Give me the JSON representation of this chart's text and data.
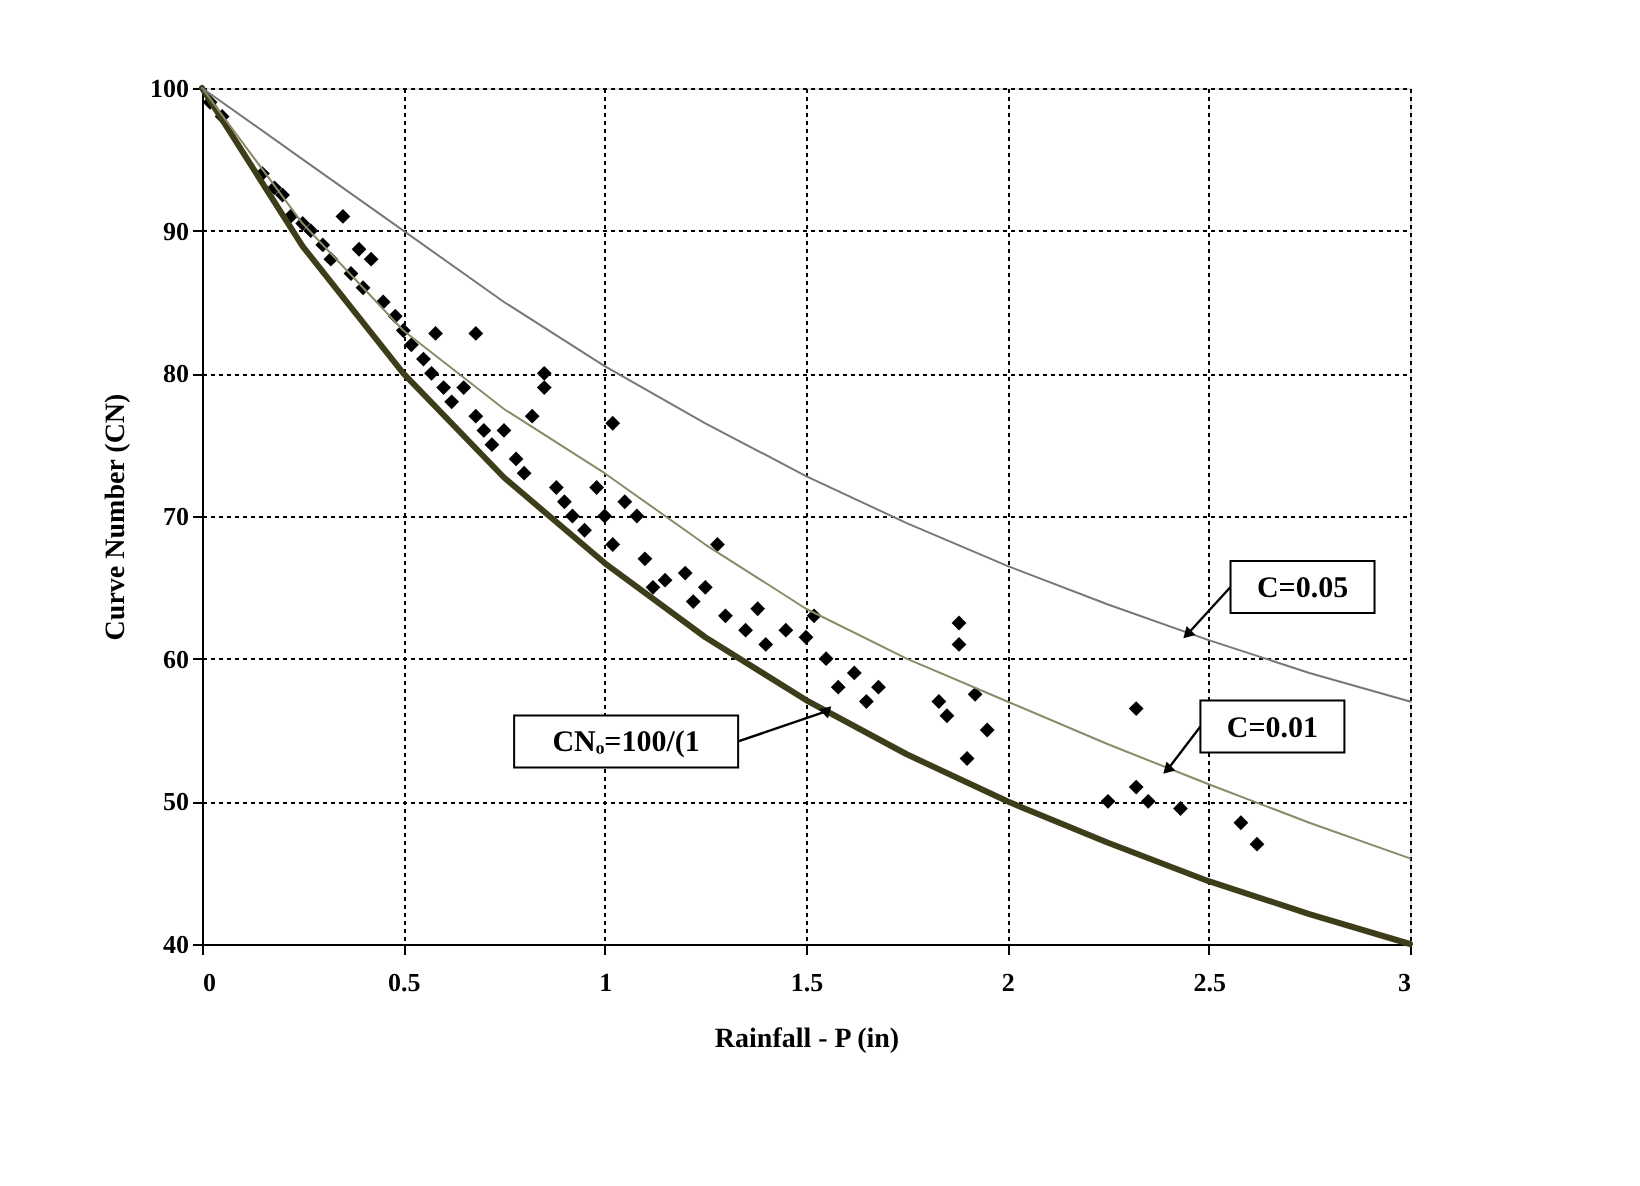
{
  "chart_data": {
    "type": "scatter",
    "xlabel": "Rainfall - P (in)",
    "ylabel": "Curve Number (CN)",
    "xlim": [
      0,
      3
    ],
    "xticks": [
      0,
      0.5,
      1,
      1.5,
      2,
      2.5,
      3
    ],
    "ylim": [
      40,
      100
    ],
    "yticks": [
      40,
      50,
      60,
      70,
      80,
      90,
      100
    ],
    "grid": true,
    "series": [
      {
        "color": "#000000",
        "marker": "diamond",
        "x": [
          0.02,
          0.05,
          0.15,
          0.18,
          0.2,
          0.22,
          0.25,
          0.27,
          0.3,
          0.32,
          0.35,
          0.39,
          0.37,
          0.4,
          0.42,
          0.45,
          0.48,
          0.5,
          0.52,
          0.55,
          0.57,
          0.6,
          0.62,
          0.58,
          0.65,
          0.68,
          0.68,
          0.7,
          0.72,
          0.75,
          0.78,
          0.8,
          0.82,
          0.85,
          0.85,
          0.88,
          0.9,
          0.92,
          0.95,
          0.98,
          1.0,
          1.02,
          1.02,
          1.05,
          1.08,
          1.1,
          1.12,
          1.15,
          1.2,
          1.22,
          1.25,
          1.28,
          1.3,
          1.35,
          1.38,
          1.4,
          1.45,
          1.5,
          1.52,
          1.55,
          1.58,
          1.62,
          1.65,
          1.68,
          1.83,
          1.85,
          1.88,
          1.88,
          1.92,
          1.9,
          1.95,
          2.25,
          2.32,
          2.32,
          2.35,
          2.43,
          2.58,
          2.62
        ],
        "values": [
          99,
          98,
          94,
          93,
          92.5,
          91,
          90.5,
          90,
          89,
          88,
          91,
          88.7,
          87,
          86,
          88,
          85,
          84,
          83,
          82,
          81,
          80,
          79,
          78,
          82.8,
          79,
          82.8,
          77,
          76,
          75,
          76,
          74,
          73,
          77,
          80,
          79,
          72,
          71,
          70,
          69,
          72,
          70,
          68,
          76.5,
          71,
          70,
          67,
          65,
          65.5,
          66,
          64,
          65,
          68,
          63,
          62,
          63.5,
          61,
          62,
          61.5,
          63,
          60,
          58,
          59,
          57,
          58,
          57,
          56,
          62.5,
          61,
          57.5,
          53,
          55,
          50,
          56.5,
          51,
          50,
          49.5,
          48.5,
          47
        ]
      },
      {
        "type": "line",
        "color": "#3d3d1a",
        "marker": "none",
        "x": [
          0,
          0.25,
          0.5,
          0.75,
          1,
          1.25,
          1.5,
          1.75,
          2,
          2.25,
          2.5,
          2.75,
          3
        ],
        "values": [
          100,
          88.9,
          80,
          72.7,
          66.7,
          61.5,
          57.1,
          53.3,
          50,
          47.1,
          44.4,
          42.1,
          40
        ]
      },
      {
        "type": "line",
        "color": "#8a8a6a",
        "marker": "none",
        "x": [
          0,
          0.25,
          0.5,
          0.75,
          1,
          1.25,
          1.5,
          1.75,
          2,
          2.25,
          2.5,
          2.75,
          3
        ],
        "values": [
          100,
          90.5,
          83,
          77.5,
          73,
          68,
          63.5,
          60,
          57,
          54,
          51.2,
          48.5,
          46
        ]
      },
      {
        "type": "line",
        "color": "#777777",
        "marker": "none",
        "x": [
          0,
          0.25,
          0.5,
          0.75,
          1,
          1.25,
          1.5,
          1.75,
          2,
          2.25,
          2.5,
          2.75,
          3
        ],
        "values": [
          100,
          95,
          90,
          85,
          80.5,
          76.5,
          72.8,
          69.5,
          66.5,
          63.8,
          61.3,
          59,
          57
        ]
      }
    ],
    "annotations": [
      {
        "text": "C=0.05",
        "x": 2.45,
        "y": 61.8
      },
      {
        "text": "C=0.01",
        "x": 2.4,
        "y": 52.3
      },
      {
        "text": "CNₒ=100/(1",
        "x": 1.55,
        "y": 56.3
      }
    ]
  }
}
